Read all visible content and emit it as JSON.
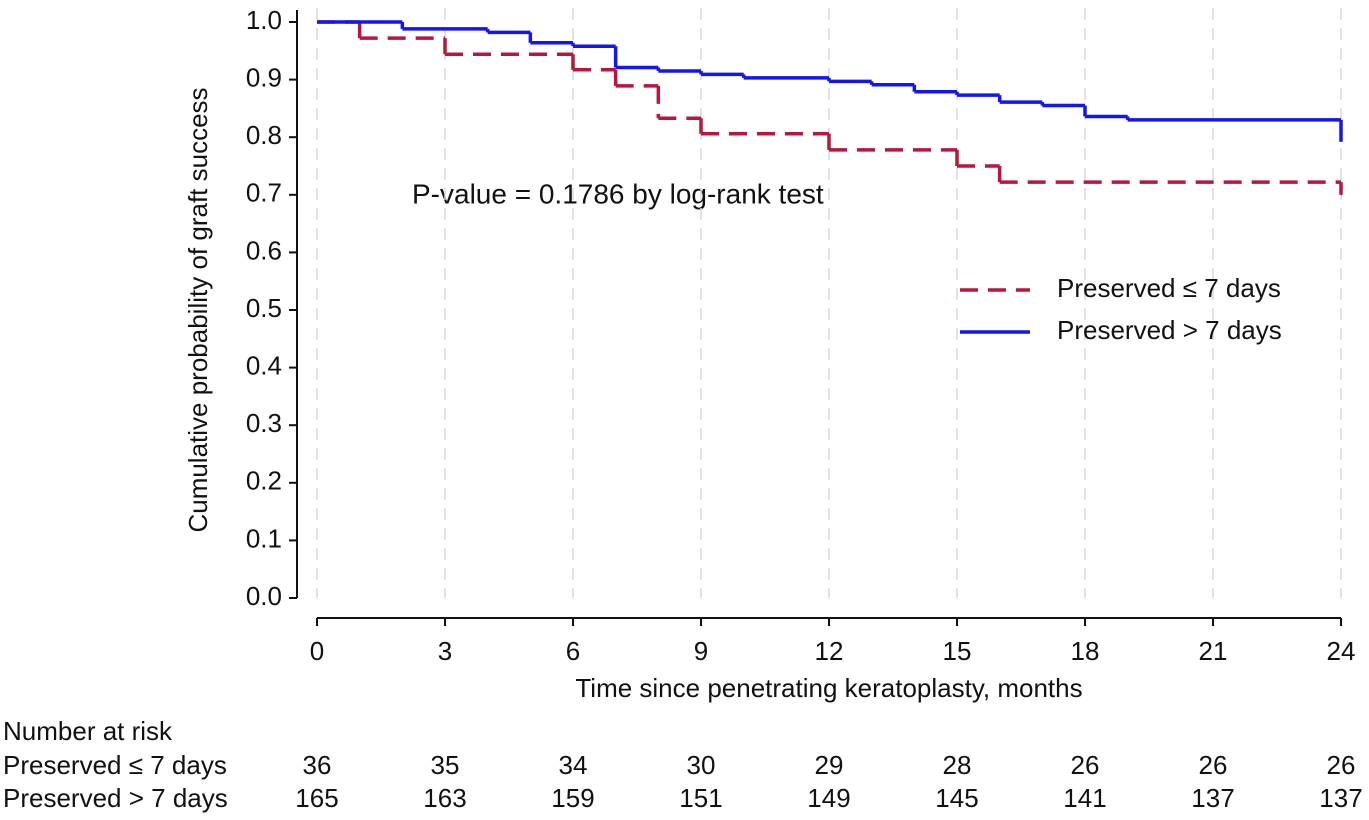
{
  "chart_data": {
    "type": "step",
    "annotation": "P-value = 0.1786 by log-rank test",
    "x_label": "Time since penetrating keratoplasty, months",
    "y_label": "Cumulative probability of graft success",
    "xlim": [
      0,
      24
    ],
    "xticks": [
      0,
      3,
      6,
      9,
      12,
      15,
      18,
      21,
      24
    ],
    "ylim": [
      0,
      1
    ],
    "yticks": [
      {
        "value": 0,
        "label": "0.0"
      },
      0.1,
      0.2,
      0.3,
      0.4,
      0.5,
      0.6,
      0.7,
      0.8,
      0.9,
      {
        "value": 1,
        "label": "1.0"
      }
    ],
    "grid": "x",
    "legend": "right",
    "series": [
      {
        "name": "Preserved ≤ 7 days",
        "color": "#b8163e",
        "dash": true,
        "x": [
          0,
          1,
          3,
          6,
          7,
          8,
          9,
          12,
          15,
          16,
          24
        ],
        "values": [
          1.0,
          0.972,
          0.944,
          0.917,
          0.889,
          0.833,
          0.806,
          0.778,
          0.75,
          0.722,
          0.7
        ]
      },
      {
        "name": "Preserved > 7 days",
        "color": "#1515ee",
        "dash": false,
        "x": [
          0,
          2,
          4,
          5,
          6,
          7,
          8,
          9,
          10,
          12,
          13,
          14,
          15,
          16,
          17,
          18,
          19,
          24
        ],
        "values": [
          1.0,
          0.988,
          0.982,
          0.964,
          0.958,
          0.921,
          0.915,
          0.909,
          0.903,
          0.897,
          0.891,
          0.879,
          0.873,
          0.861,
          0.855,
          0.836,
          0.83,
          0.792
        ]
      }
    ],
    "risk_table": {
      "title": "Number at risk",
      "rows": [
        {
          "name": "Preserved ≤ 7 days",
          "values": [
            36,
            35,
            34,
            30,
            29,
            28,
            26,
            26,
            26
          ]
        },
        {
          "name": "Preserved > 7 days",
          "values": [
            165,
            163,
            159,
            151,
            149,
            145,
            141,
            137,
            137
          ]
        }
      ]
    }
  }
}
